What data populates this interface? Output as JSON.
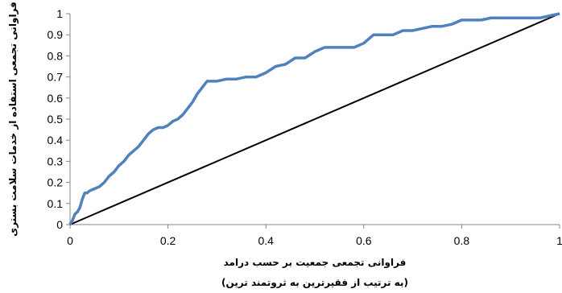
{
  "chart_data": {
    "type": "line",
    "xlabel": "فراوانی تجمعی جمعیت بر حسب درامد",
    "xlabel_sub": "(به ترتیب از فقیرترین به ثروتمند ترین)",
    "ylabel": "فراوانی تجمعی استفاده از خدمات سلامت بستری",
    "xlim": [
      0,
      1
    ],
    "ylim": [
      0,
      1
    ],
    "x_ticks": [
      0,
      0.2,
      0.4,
      0.6,
      0.8,
      1
    ],
    "x_tick_labels": [
      "0",
      "0.2",
      "0.4",
      "0.6",
      "0.8",
      "1"
    ],
    "y_ticks": [
      0,
      0.1,
      0.2,
      0.3,
      0.4,
      0.5,
      0.6,
      0.7,
      0.8,
      0.9,
      1
    ],
    "y_tick_labels": [
      "0",
      "0.1",
      "0.2",
      "0.3",
      "0.4",
      "0.5",
      "0.6",
      "0.7",
      "0.8",
      "0.9",
      "1"
    ],
    "grid": false,
    "series": [
      {
        "role": "concentration-curve",
        "color": "#4f81bd",
        "x": [
          0,
          0.005,
          0.01,
          0.015,
          0.02,
          0.025,
          0.03,
          0.035,
          0.04,
          0.05,
          0.06,
          0.07,
          0.08,
          0.09,
          0.1,
          0.11,
          0.12,
          0.13,
          0.14,
          0.15,
          0.16,
          0.17,
          0.18,
          0.19,
          0.2,
          0.21,
          0.22,
          0.23,
          0.24,
          0.25,
          0.26,
          0.27,
          0.28,
          0.29,
          0.3,
          0.32,
          0.34,
          0.36,
          0.38,
          0.4,
          0.42,
          0.44,
          0.46,
          0.48,
          0.5,
          0.52,
          0.54,
          0.56,
          0.58,
          0.6,
          0.62,
          0.64,
          0.66,
          0.68,
          0.7,
          0.72,
          0.74,
          0.76,
          0.78,
          0.8,
          0.82,
          0.84,
          0.86,
          0.88,
          0.9,
          0.92,
          0.94,
          0.96,
          0.98,
          1.0
        ],
        "y": [
          0,
          0.02,
          0.05,
          0.06,
          0.08,
          0.12,
          0.15,
          0.15,
          0.16,
          0.17,
          0.18,
          0.2,
          0.23,
          0.25,
          0.28,
          0.3,
          0.33,
          0.35,
          0.37,
          0.4,
          0.43,
          0.45,
          0.46,
          0.46,
          0.47,
          0.49,
          0.5,
          0.52,
          0.55,
          0.58,
          0.62,
          0.65,
          0.68,
          0.68,
          0.68,
          0.69,
          0.69,
          0.7,
          0.7,
          0.72,
          0.75,
          0.76,
          0.79,
          0.79,
          0.82,
          0.84,
          0.84,
          0.84,
          0.84,
          0.86,
          0.9,
          0.9,
          0.9,
          0.92,
          0.92,
          0.93,
          0.94,
          0.94,
          0.95,
          0.97,
          0.97,
          0.97,
          0.98,
          0.98,
          0.98,
          0.98,
          0.98,
          0.98,
          0.99,
          1.0
        ]
      },
      {
        "role": "line-of-equality",
        "color": "#000000",
        "x": [
          0,
          1
        ],
        "y": [
          0,
          1
        ]
      }
    ]
  }
}
